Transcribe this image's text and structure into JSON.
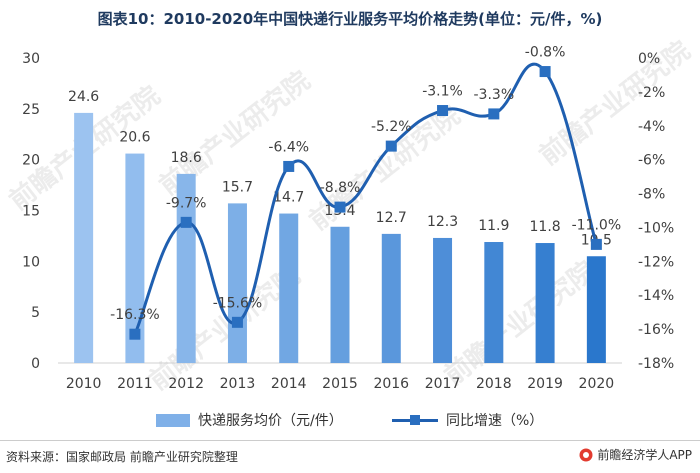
{
  "title": "图表10：2010-2020年中国快递行业服务平均价格走势(单位：元/件，%)",
  "watermark": "前瞻产业研究院",
  "source": "资料来源：国家邮政局 前瞻产业研究院整理",
  "credit": "前瞻经济学人APP",
  "chart_data": {
    "type": "bar+line",
    "categories": [
      "2010",
      "2011",
      "2012",
      "2013",
      "2014",
      "2015",
      "2016",
      "2017",
      "2018",
      "2019",
      "2020"
    ],
    "bar_series": {
      "name": "快递服务均价（元/件）",
      "values": [
        24.6,
        20.6,
        18.6,
        15.7,
        14.7,
        13.4,
        12.7,
        12.3,
        11.9,
        11.8,
        10.5
      ],
      "labels": [
        "24.6",
        "20.6",
        "18.6",
        "15.7",
        "14.7",
        "13.4",
        "12.7",
        "12.3",
        "11.9",
        "11.8",
        "10.5"
      ]
    },
    "line_series": {
      "name": "同比增速（%）",
      "values": [
        null,
        -16.3,
        -9.7,
        -15.6,
        -6.4,
        -8.8,
        -5.2,
        -3.1,
        -3.3,
        -0.8,
        -11.0
      ],
      "labels": [
        null,
        "-16.3%",
        "-9.7%",
        "-15.6%",
        "-6.4%",
        "-8.8%",
        "-5.2%",
        "-3.1%",
        "-3.3%",
        "-0.8%",
        "-11.0%"
      ]
    },
    "left_axis": {
      "min": 0,
      "max": 30,
      "ticks": [
        "0",
        "5",
        "10",
        "15",
        "20",
        "25",
        "30"
      ]
    },
    "right_axis": {
      "min": -18,
      "max": 0,
      "ticks": [
        "0%",
        "-2%",
        "-4%",
        "-6%",
        "-8%",
        "-10%",
        "-12%",
        "-14%",
        "-16%",
        "-18%"
      ]
    },
    "colors": {
      "bars": [
        "#9cc3f0",
        "#92bdee",
        "#88b6ea",
        "#7dafe7",
        "#71a7e3",
        "#659fdf",
        "#5a97dc",
        "#4e8ed8",
        "#4287d4",
        "#367fd0",
        "#2a77cc"
      ],
      "line": "#1f5fb0",
      "marker": "#2a6fc0"
    },
    "legend_position": "bottom",
    "grid": false
  }
}
